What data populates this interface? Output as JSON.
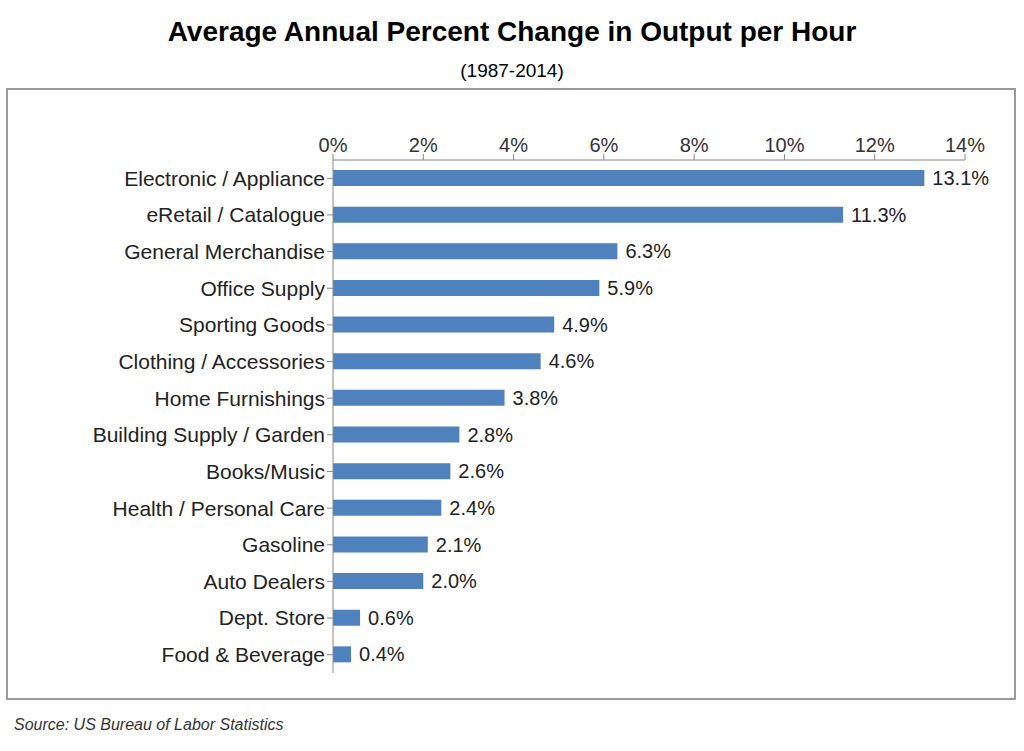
{
  "chart_data": {
    "type": "bar",
    "orientation": "horizontal",
    "title": "Average Annual Percent Change in Output per Hour",
    "subtitle": "(1987-2014)",
    "source": "Source: US Bureau of Labor Statistics",
    "categories": [
      "Electronic / Appliance",
      "eRetail / Catalogue",
      "General Merchandise",
      "Office Supply",
      "Sporting Goods",
      "Clothing / Accessories",
      "Home Furnishings",
      "Building Supply / Garden",
      "Books/Music",
      "Health / Personal Care",
      "Gasoline",
      "Auto Dealers",
      "Dept. Store",
      "Food & Beverage"
    ],
    "values": [
      13.1,
      11.3,
      6.3,
      5.9,
      4.9,
      4.6,
      3.8,
      2.8,
      2.6,
      2.4,
      2.1,
      2.0,
      0.6,
      0.4
    ],
    "value_labels": [
      "13.1%",
      "11.3%",
      "6.3%",
      "5.9%",
      "4.9%",
      "4.6%",
      "3.8%",
      "2.8%",
      "2.6%",
      "2.4%",
      "2.1%",
      "2.0%",
      "0.6%",
      "0.4%"
    ],
    "color": "#4f81bd",
    "xlim": [
      0,
      14
    ],
    "xticks": [
      {
        "value": 0,
        "label": "0%"
      },
      {
        "value": 2,
        "label": "2%"
      },
      {
        "value": 4,
        "label": "4%"
      },
      {
        "value": 6,
        "label": "6%"
      },
      {
        "value": 8,
        "label": "8%"
      },
      {
        "value": 10,
        "label": "10%"
      },
      {
        "value": 12,
        "label": "12%"
      },
      {
        "value": 14,
        "label": "14%"
      }
    ],
    "grid": false,
    "data_labels": true
  }
}
